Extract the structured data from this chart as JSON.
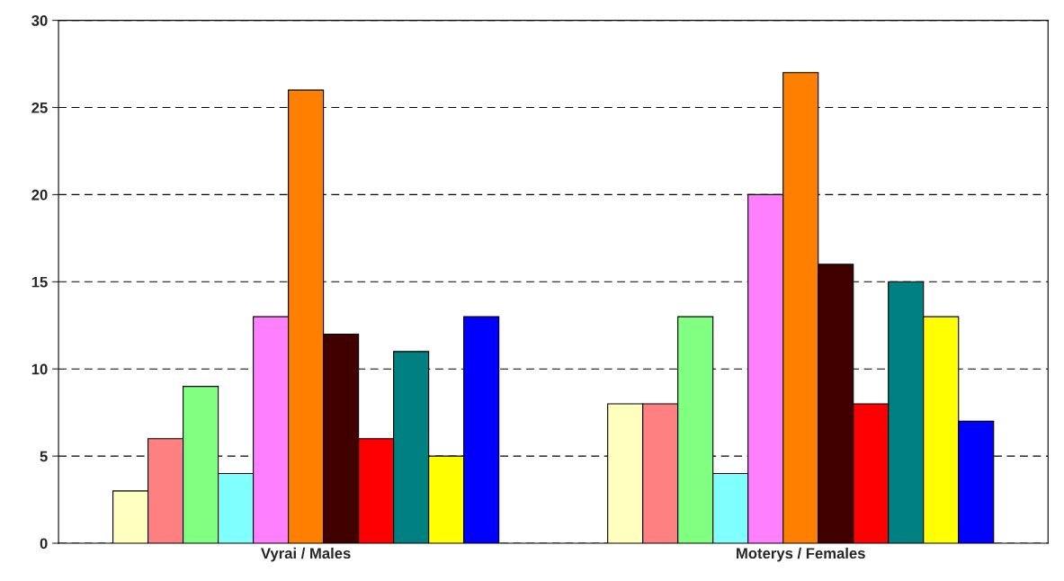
{
  "chart_data": {
    "type": "bar",
    "categories": [
      "Vyrai / Males",
      "Moterys / Females"
    ],
    "series": [
      {
        "color": "#ffffc0",
        "values": [
          3,
          8
        ]
      },
      {
        "color": "#ff8080",
        "values": [
          6,
          8
        ]
      },
      {
        "color": "#80ff80",
        "values": [
          9,
          13
        ]
      },
      {
        "color": "#80ffff",
        "values": [
          4,
          4
        ]
      },
      {
        "color": "#ff80ff",
        "values": [
          13,
          20
        ]
      },
      {
        "color": "#ff8000",
        "values": [
          26,
          27
        ]
      },
      {
        "color": "#400000",
        "values": [
          12,
          16
        ]
      },
      {
        "color": "#ff0000",
        "values": [
          6,
          8
        ]
      },
      {
        "color": "#008080",
        "values": [
          11,
          15
        ]
      },
      {
        "color": "#ffff00",
        "values": [
          5,
          13
        ]
      },
      {
        "color": "#0000ff",
        "values": [
          13,
          7
        ]
      }
    ],
    "ylim": [
      0,
      30
    ],
    "yticks": [
      0,
      5,
      10,
      15,
      20,
      25,
      30
    ],
    "grid": "y",
    "line_style": "dashed"
  }
}
